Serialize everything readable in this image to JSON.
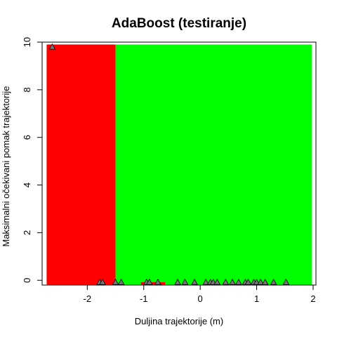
{
  "chart_data": {
    "type": "scatter",
    "title": "AdaBoost (testiranje)",
    "xlabel": "Duljina trajektorije (m)",
    "ylabel": "Maksimalni očekivani pomak trajektorije",
    "xlim": [
      -2.8,
      2.05
    ],
    "ylim": [
      -0.2,
      10.0
    ],
    "x_ticks": [
      -2,
      -1,
      0,
      1,
      2
    ],
    "y_ticks": [
      0,
      2,
      4,
      6,
      8,
      10
    ],
    "grid": false,
    "legend": "none",
    "regions": [
      {
        "class": "red",
        "color": "#ff0000",
        "x_range": [
          -2.72,
          -1.5
        ],
        "y_range": [
          -0.18,
          9.9
        ]
      },
      {
        "class": "green",
        "color": "#00ff00",
        "x_range": [
          -1.5,
          1.98
        ],
        "y_range": [
          -0.18,
          9.9
        ]
      },
      {
        "class": "red",
        "color": "#ff0000",
        "x_range": [
          -1.05,
          -0.62
        ],
        "y_range": [
          -0.18,
          -0.08
        ]
      }
    ],
    "points": {
      "marker": "triangle",
      "fill": "#777777",
      "stroke": "#000000",
      "x": [
        -2.62,
        -1.78,
        -1.73,
        -1.5,
        -1.4,
        -0.95,
        -0.9,
        -0.75,
        -0.4,
        -0.27,
        -0.1,
        0.1,
        0.18,
        0.23,
        0.3,
        0.45,
        0.57,
        0.68,
        0.8,
        0.85,
        0.95,
        1.0,
        1.07,
        1.15,
        1.3,
        1.52
      ],
      "y": [
        9.8,
        -0.08,
        -0.08,
        -0.08,
        -0.08,
        -0.08,
        -0.08,
        -0.08,
        -0.08,
        -0.08,
        -0.08,
        -0.08,
        -0.08,
        -0.08,
        -0.08,
        -0.08,
        -0.08,
        -0.08,
        -0.08,
        -0.08,
        -0.08,
        -0.08,
        -0.08,
        -0.08,
        -0.08,
        -0.08
      ]
    }
  }
}
